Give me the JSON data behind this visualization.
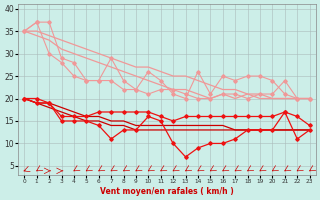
{
  "x": [
    0,
    1,
    2,
    3,
    4,
    5,
    6,
    7,
    8,
    9,
    10,
    11,
    12,
    13,
    14,
    15,
    16,
    17,
    18,
    19,
    20,
    21,
    22,
    23
  ],
  "line_max_salmon": [
    35,
    37,
    37,
    29,
    28,
    24,
    24,
    29,
    24,
    22,
    26,
    24,
    21,
    20,
    26,
    21,
    25,
    24,
    25,
    25,
    24,
    21,
    20,
    20
  ],
  "line_min_salmon": [
    35,
    37,
    30,
    28,
    25,
    24,
    24,
    24,
    22,
    22,
    21,
    22,
    22,
    21,
    20,
    20,
    21,
    21,
    20,
    21,
    21,
    24,
    20,
    20
  ],
  "line_trend_upper": [
    35,
    35,
    34,
    33,
    32,
    31,
    30,
    29,
    28,
    27,
    27,
    26,
    25,
    25,
    24,
    23,
    22,
    22,
    21,
    21,
    20,
    20,
    20,
    20
  ],
  "line_trend_lower": [
    35,
    34,
    33,
    31,
    30,
    29,
    28,
    27,
    26,
    25,
    24,
    23,
    22,
    22,
    21,
    20,
    21,
    20,
    21,
    20,
    20,
    20,
    20,
    20
  ],
  "line_red_max": [
    20,
    20,
    19,
    16,
    16,
    16,
    17,
    17,
    17,
    17,
    17,
    16,
    15,
    16,
    16,
    16,
    16,
    16,
    16,
    16,
    16,
    17,
    16,
    14
  ],
  "line_red_min": [
    20,
    19,
    19,
    15,
    15,
    15,
    14,
    11,
    13,
    13,
    16,
    15,
    10,
    7,
    9,
    10,
    10,
    11,
    13,
    13,
    13,
    17,
    11,
    13
  ],
  "line_red_trend_upper": [
    20,
    19,
    19,
    18,
    17,
    16,
    16,
    15,
    15,
    14,
    14,
    14,
    14,
    14,
    14,
    14,
    14,
    13,
    13,
    13,
    13,
    13,
    13,
    13
  ],
  "line_red_trend_lower": [
    20,
    19,
    18,
    17,
    16,
    15,
    15,
    14,
    14,
    13,
    13,
    13,
    13,
    13,
    13,
    13,
    13,
    13,
    13,
    13,
    13,
    13,
    13,
    13
  ],
  "xlabel": "Vent moyen/en rafales ( km/h )",
  "yticks": [
    5,
    10,
    15,
    20,
    25,
    30,
    35,
    40
  ],
  "ylim_min": 3,
  "ylim_max": 41,
  "bg_color": "#cceee8",
  "grid_color": "#aabbbb",
  "salmon_color": "#f09898",
  "red_color": "#cc0000",
  "red_color2": "#ee1111",
  "label_color": "#cc0000",
  "arrow_angles": [
    225,
    210,
    90,
    90,
    210,
    210,
    210,
    210,
    210,
    210,
    210,
    210,
    210,
    210,
    210,
    210,
    210,
    210,
    210,
    210,
    210,
    210,
    210,
    210
  ]
}
